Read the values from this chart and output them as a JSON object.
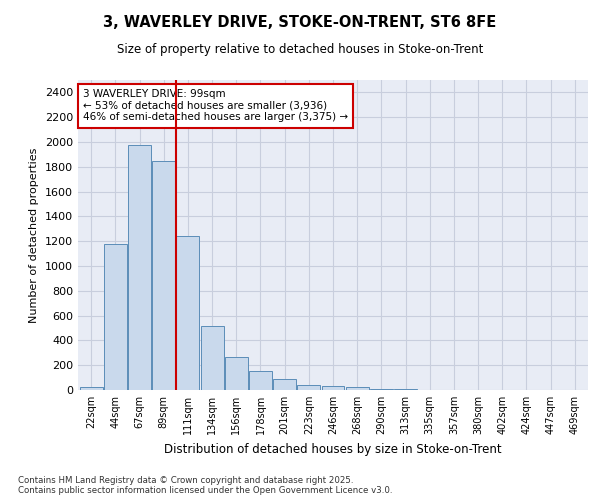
{
  "title1": "3, WAVERLEY DRIVE, STOKE-ON-TRENT, ST6 8FE",
  "title2": "Size of property relative to detached houses in Stoke-on-Trent",
  "xlabel": "Distribution of detached houses by size in Stoke-on-Trent",
  "ylabel": "Number of detached properties",
  "categories": [
    "22sqm",
    "44sqm",
    "67sqm",
    "89sqm",
    "111sqm",
    "134sqm",
    "156sqm",
    "178sqm",
    "201sqm",
    "223sqm",
    "246sqm",
    "268sqm",
    "290sqm",
    "313sqm",
    "335sqm",
    "357sqm",
    "380sqm",
    "402sqm",
    "424sqm",
    "447sqm",
    "469sqm"
  ],
  "values": [
    25,
    1175,
    1975,
    1850,
    1245,
    515,
    270,
    155,
    85,
    40,
    30,
    25,
    10,
    5,
    3,
    2,
    2,
    1,
    1,
    1,
    1
  ],
  "bar_color": "#c9d9ec",
  "bar_edge_color": "#5b8db8",
  "vline_x": 3.5,
  "vline_color": "#cc0000",
  "annotation_title": "3 WAVERLEY DRIVE: 99sqm",
  "annotation_line2": "← 53% of detached houses are smaller (3,936)",
  "annotation_line3": "46% of semi-detached houses are larger (3,375) →",
  "annotation_box_color": "#ffffff",
  "annotation_border_color": "#cc0000",
  "ylim": [
    0,
    2500
  ],
  "yticks": [
    0,
    200,
    400,
    600,
    800,
    1000,
    1200,
    1400,
    1600,
    1800,
    2000,
    2200,
    2400
  ],
  "grid_color": "#c8cedd",
  "background_color": "#e8ecf5",
  "footer1": "Contains HM Land Registry data © Crown copyright and database right 2025.",
  "footer2": "Contains public sector information licensed under the Open Government Licence v3.0."
}
